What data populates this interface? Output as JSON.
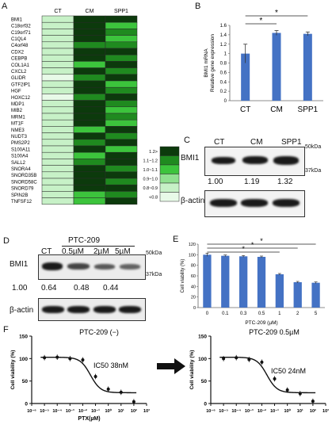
{
  "panels": {
    "a": "A",
    "b": "B",
    "c": "C",
    "d": "D",
    "e": "E",
    "f": "F"
  },
  "colors": {
    "bar": "#4472c4",
    "heat_low": "#e9fbe9",
    "heat_high": "#0b2a0b"
  },
  "chart_data": [
    {
      "panel": "A",
      "type": "heatmap",
      "columns": [
        "CT",
        "CM",
        "SPP1"
      ],
      "rows": [
        "BMI1",
        "C18orf32",
        "C19orf71",
        "C1QL4",
        "C4orf48",
        "CDX2",
        "CEBPB",
        "COL1A1",
        "CXCL2",
        "GLIDR",
        "GTF2IP1",
        "HGF",
        "HOXC12",
        "MDP1",
        "MIB2",
        "MRM1",
        "MT1F",
        "NME3",
        "NUDT3",
        "PMS2P2",
        "S100A11",
        "S100A4",
        "SALL2",
        "SNORA4",
        "SNORD35B",
        "SNORD58C",
        "SNORD79",
        "SPIN2B",
        "TNFSF12"
      ],
      "values": [
        [
          0.85,
          1.25,
          1.25
        ],
        [
          0.85,
          1.25,
          1.05
        ],
        [
          0.85,
          1.25,
          1.15
        ],
        [
          0.85,
          1.25,
          1.05
        ],
        [
          0.85,
          1.15,
          1.15
        ],
        [
          0.85,
          1.25,
          1.25
        ],
        [
          0.85,
          1.25,
          1.15
        ],
        [
          0.85,
          1.05,
          1.25
        ],
        [
          0.85,
          1.25,
          1.15
        ],
        [
          0.75,
          1.15,
          1.25
        ],
        [
          0.85,
          1.25,
          1.05
        ],
        [
          0.85,
          1.25,
          1.15
        ],
        [
          0.75,
          1.15,
          1.25
        ],
        [
          0.85,
          1.25,
          1.15
        ],
        [
          0.85,
          1.25,
          1.05
        ],
        [
          0.85,
          1.25,
          1.15
        ],
        [
          0.85,
          1.25,
          1.05
        ],
        [
          0.85,
          1.05,
          1.25
        ],
        [
          0.85,
          1.25,
          1.15
        ],
        [
          0.85,
          1.15,
          1.25
        ],
        [
          0.85,
          1.25,
          1.05
        ],
        [
          0.85,
          1.05,
          1.25
        ],
        [
          0.85,
          1.15,
          1.25
        ],
        [
          0.85,
          1.25,
          1.15
        ],
        [
          0.85,
          1.25,
          1.25
        ],
        [
          0.85,
          1.25,
          1.15
        ],
        [
          0.85,
          1.25,
          1.25
        ],
        [
          0.85,
          1.05,
          1.15
        ],
        [
          0.85,
          1.05,
          1.25
        ]
      ],
      "legend": [
        "1.2>",
        "1.1~1.2",
        "1.0~1.1",
        "0.9~1.0",
        "0.8~0.9",
        "<0.8"
      ]
    },
    {
      "panel": "B",
      "type": "bar",
      "categories": [
        "CT",
        "CM",
        "SPP1"
      ],
      "values": [
        1.0,
        1.44,
        1.42
      ],
      "errors": [
        0.2,
        0.05,
        0.04
      ],
      "ylabel": "BMI1 mRNA\nRelative gene expression",
      "ylim": [
        0,
        1.6
      ],
      "yticks": [
        "0",
        "0.2",
        "0.4",
        "0.6",
        "0.8",
        "1",
        "1.2",
        "1.4",
        "1.6"
      ],
      "significance": [
        "*",
        "*"
      ]
    },
    {
      "panel": "C",
      "type": "table",
      "lanes": [
        "CT",
        "CM",
        "SPP1"
      ],
      "values": [
        "1.00",
        "1.19",
        "1.32"
      ],
      "rows": [
        "BMI1",
        "β-actin"
      ],
      "markers": [
        "50kDa",
        "37kDa"
      ]
    },
    {
      "panel": "D",
      "type": "table",
      "header": "PTC-209",
      "lanes": [
        "CT",
        "0.5µM",
        "2µM",
        "5µM"
      ],
      "values": [
        "1.00",
        "0.64",
        "0.48",
        "0.44"
      ],
      "rows": [
        "BMI1",
        "β-actin"
      ],
      "markers": [
        "50kDa",
        "37kDa"
      ]
    },
    {
      "panel": "E",
      "type": "bar",
      "categories": [
        "0",
        "0.1",
        "0.3",
        "0.5",
        "1",
        "2",
        "5"
      ],
      "values": [
        100,
        98,
        97,
        96,
        63,
        48,
        47
      ],
      "errors": [
        3,
        1.5,
        1.5,
        1.5,
        1.5,
        1.5,
        1.5
      ],
      "xlabel": "PTC-209 (µM)",
      "ylabel": "Cell viability (%)",
      "ylim": [
        0,
        120
      ],
      "yticks": [
        "0",
        "20",
        "40",
        "60",
        "80",
        "100",
        "120"
      ],
      "significance": [
        "*",
        "*",
        "*"
      ]
    },
    {
      "panel": "F-left",
      "type": "line",
      "title": "PTC-209 (−)",
      "annotation": "IC50 38nM",
      "xlabel": "PTX(µM)",
      "ylabel": "Cell viability (%)",
      "ylim": [
        0,
        150
      ],
      "yticks": [
        "0",
        "50",
        "100",
        "150"
      ],
      "xticks": [
        "10⁻⁶",
        "10⁻⁵",
        "10⁻⁴",
        "10⁻³",
        "10⁻²",
        "10⁻¹",
        "10⁰",
        "10¹",
        "10²",
        "10³"
      ],
      "x": [
        -5,
        -4,
        -3,
        -2,
        -1,
        0,
        1,
        2
      ],
      "y": [
        102,
        103,
        100,
        97,
        60,
        32,
        25,
        4
      ]
    },
    {
      "panel": "F-right",
      "type": "line",
      "title": "PTC-209 0.5µM",
      "annotation": "IC50 24nM",
      "xlabel": "",
      "ylabel": "Cell viability (%)",
      "ylim": [
        0,
        150
      ],
      "yticks": [
        "0",
        "50",
        "100",
        "150"
      ],
      "xticks": [
        "10⁻⁶",
        "10⁻⁵",
        "10⁻⁴",
        "10⁻³",
        "10⁻²",
        "10⁻¹",
        "10⁰",
        "10¹",
        "10²",
        "10³"
      ],
      "x": [
        -5,
        -4,
        -3,
        -2,
        -1,
        0,
        1,
        2
      ],
      "y": [
        100,
        102,
        98,
        92,
        55,
        30,
        22,
        5
      ]
    }
  ]
}
